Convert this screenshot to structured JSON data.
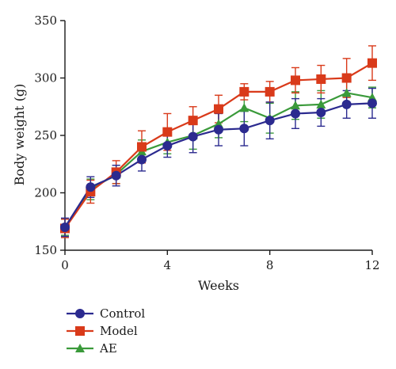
{
  "chart_data": {
    "type": "line",
    "xlabel": "Weeks",
    "ylabel": "Body weight (g)",
    "xlim": [
      0,
      12
    ],
    "ylim": [
      150,
      350
    ],
    "x_ticks": [
      0,
      4,
      8,
      12
    ],
    "y_ticks": [
      150,
      200,
      250,
      300,
      350
    ],
    "x": [
      0,
      1,
      2,
      3,
      4,
      5,
      6,
      7,
      8,
      9,
      10,
      11,
      12
    ],
    "grid": false,
    "legend_position": "bottom-left",
    "series": [
      {
        "name": "Control",
        "color": "#2b2a8f",
        "marker": "circle",
        "values": [
          170,
          205,
          215,
          229,
          241,
          249,
          255,
          256,
          263,
          269,
          270,
          277,
          278
        ],
        "errors": [
          8,
          9,
          9,
          10,
          10,
          14,
          14,
          15,
          16,
          13,
          12,
          12,
          13
        ]
      },
      {
        "name": "Model",
        "color": "#d93a1a",
        "marker": "square",
        "values": [
          169,
          201,
          218,
          240,
          253,
          263,
          273,
          288,
          288,
          298,
          299,
          300,
          313
        ],
        "errors": [
          8,
          10,
          10,
          14,
          16,
          12,
          12,
          7,
          9,
          11,
          12,
          17,
          15
        ]
      },
      {
        "name": "AE",
        "color": "#3a9a3a",
        "marker": "triangle",
        "values": [
          170,
          203,
          216,
          236,
          244,
          250,
          260,
          274,
          265,
          276,
          277,
          287,
          283
        ],
        "errors": [
          7,
          9,
          8,
          10,
          10,
          12,
          12,
          12,
          13,
          12,
          12,
          10,
          9
        ]
      }
    ]
  }
}
